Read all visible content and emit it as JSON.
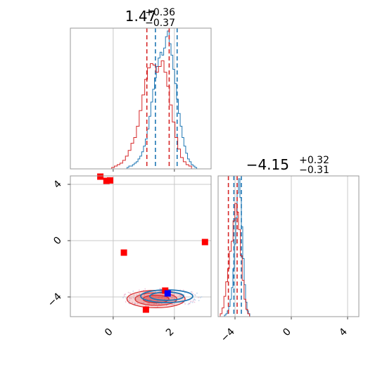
{
  "chart_data": [
    {
      "panel": "marginal-x",
      "type": "histogram",
      "title_value": "1.47",
      "title_plus": "+0.36",
      "title_minus": "−0.37",
      "xlim": [
        -1.4,
        3.2
      ],
      "xgrid": [
        0,
        2
      ],
      "grid": true,
      "series": [
        {
          "color": "#1f77b4",
          "bin_start": 0.45,
          "bin_width": 0.06,
          "density": [
            0.01,
            0.02,
            0.02,
            0.03,
            0.04,
            0.05,
            0.07,
            0.09,
            0.12,
            0.16,
            0.21,
            0.28,
            0.37,
            0.47,
            0.56,
            0.64,
            0.72,
            0.78,
            0.82,
            0.8,
            0.85,
            0.93,
            0.97,
            0.88,
            0.8,
            0.7,
            0.6,
            0.49,
            0.39,
            0.3,
            0.22,
            0.16,
            0.11,
            0.07,
            0.05,
            0.03,
            0.02,
            0.01
          ],
          "quantile_lines": [
            1.38,
            2.09
          ]
        },
        {
          "color": "#d62728",
          "bin_start": -0.05,
          "bin_width": 0.09,
          "density": [
            0.01,
            0.02,
            0.03,
            0.04,
            0.06,
            0.09,
            0.13,
            0.18,
            0.22,
            0.3,
            0.41,
            0.52,
            0.63,
            0.71,
            0.74,
            0.73,
            0.68,
            0.72,
            0.76,
            0.68,
            0.58,
            0.45,
            0.33,
            0.22,
            0.14,
            0.08,
            0.05,
            0.03,
            0.02
          ],
          "quantile_lines": [
            1.1,
            1.83
          ]
        }
      ]
    },
    {
      "panel": "marginal-y",
      "type": "histogram",
      "title_value": "−4.15",
      "title_plus": "+0.32",
      "title_minus": "−0.31",
      "xlim": [
        -5.2,
        4.8
      ],
      "xgrid": [
        -4,
        0,
        4
      ],
      "grid": true,
      "series": [
        {
          "color": "#1f77b4",
          "bin_start": -4.75,
          "bin_width": 0.1,
          "density": [
            0.01,
            0.02,
            0.04,
            0.07,
            0.12,
            0.2,
            0.33,
            0.5,
            0.68,
            0.85,
            0.95,
            0.82,
            0.62,
            0.4,
            0.22,
            0.1,
            0.04,
            0.02
          ],
          "quantile_lines": [
            -4.08,
            -3.55
          ]
        },
        {
          "color": "#d62728",
          "bin_start": -5.05,
          "bin_width": 0.13,
          "density": [
            0.02,
            0.06,
            0.14,
            0.24,
            0.33,
            0.45,
            0.52,
            0.66,
            0.78,
            0.72,
            0.6,
            0.42,
            0.25,
            0.12,
            0.05,
            0.02
          ],
          "quantile_lines": [
            -4.47,
            -3.85
          ]
        }
      ]
    },
    {
      "panel": "joint",
      "type": "scatter",
      "xlim": [
        -1.4,
        3.2
      ],
      "ylim": [
        -5.4,
        4.6
      ],
      "xticks": [
        "0",
        "2"
      ],
      "xtick_values": [
        0,
        2
      ],
      "yticks": [
        "−4",
        "0",
        "4"
      ],
      "ytick_values": [
        -4,
        0,
        4
      ],
      "grid": true,
      "contours": [
        {
          "color": "#d62728",
          "cx": 1.4,
          "cy": -4.15,
          "rx": 0.95,
          "ry": 0.62,
          "levels": [
            1.0,
            0.72,
            0.45
          ]
        },
        {
          "color": "#1f77b4",
          "cx": 1.75,
          "cy": -3.95,
          "rx": 0.85,
          "ry": 0.45,
          "levels": [
            1.0,
            0.65
          ]
        }
      ],
      "points_red": [
        {
          "x": -0.42,
          "y": 4.55
        },
        {
          "x": -0.22,
          "y": 4.25
        },
        {
          "x": -0.1,
          "y": 4.28
        },
        {
          "x": 0.35,
          "y": -0.85
        },
        {
          "x": 3.0,
          "y": -0.1
        },
        {
          "x": 1.07,
          "y": -4.9
        },
        {
          "x": 1.7,
          "y": -3.55
        }
      ],
      "points_blue": [
        {
          "x": 1.78,
          "y": -3.75
        }
      ]
    }
  ]
}
